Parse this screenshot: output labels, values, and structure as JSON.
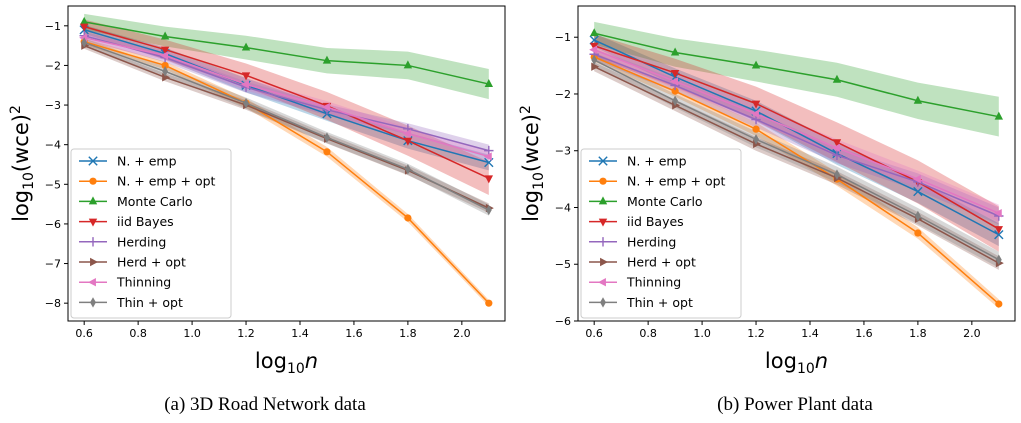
{
  "chart_data": [
    {
      "type": "line",
      "caption": "(a) 3D Road Network data",
      "xlabel": "log",
      "xlabel_sub": "10",
      "xlabel_var": "n",
      "ylabel": "log",
      "ylabel_sub": "10",
      "ylabel_rest": "(wce)",
      "ylabel_sup": "2",
      "xlim": [
        0.54,
        2.16
      ],
      "ylim": [
        -8.45,
        -0.5
      ],
      "xticks": [
        "0.6",
        "0.8",
        "1.0",
        "1.2",
        "1.4",
        "1.6",
        "1.8",
        "2.0"
      ],
      "yticks": [
        "-1",
        "-2",
        "-3",
        "-4",
        "-5",
        "-6",
        "-7",
        "-8"
      ],
      "grid": false,
      "legend_position": "lower-left",
      "x": [
        0.6,
        0.9,
        1.2,
        1.5,
        1.8,
        2.1
      ],
      "series": [
        {
          "name": "N. + emp",
          "color": "#1f77b4",
          "marker": "x",
          "values": [
            -1.1,
            -1.7,
            -2.5,
            -3.22,
            -3.9,
            -4.45
          ],
          "band": [
            0.12,
            0.15,
            0.18,
            0.18,
            0.2,
            0.2
          ]
        },
        {
          "name": "N. + emp + opt",
          "color": "#ff7f0e",
          "marker": "o",
          "values": [
            -1.4,
            -2.0,
            -2.95,
            -4.18,
            -5.85,
            -8.0
          ],
          "band": [
            0.08,
            0.1,
            0.12,
            0.12,
            0.1,
            0.08
          ]
        },
        {
          "name": "Monte Carlo",
          "color": "#2ca02c",
          "marker": "^",
          "values": [
            -0.9,
            -1.27,
            -1.55,
            -1.88,
            -2.0,
            -2.47
          ],
          "band": [
            0.2,
            0.25,
            0.3,
            0.32,
            0.35,
            0.38
          ]
        },
        {
          "name": "iid Bayes",
          "color": "#d62728",
          "marker": "v",
          "values": [
            -1.02,
            -1.6,
            -2.25,
            -3.02,
            -3.9,
            -4.85
          ],
          "band": [
            0.18,
            0.25,
            0.3,
            0.35,
            0.38,
            0.42
          ]
        },
        {
          "name": "Herding",
          "color": "#9467bd",
          "marker": "+",
          "values": [
            -1.25,
            -1.8,
            -2.55,
            -3.12,
            -3.6,
            -4.15
          ],
          "band": [
            0.1,
            0.12,
            0.14,
            0.14,
            0.14,
            0.15
          ]
        },
        {
          "name": "Herd + opt",
          "color": "#8c564b",
          "marker": ">",
          "values": [
            -1.5,
            -2.3,
            -3.0,
            -3.85,
            -4.65,
            -5.6
          ],
          "band": [
            0.08,
            0.1,
            0.12,
            0.12,
            0.12,
            0.12
          ]
        },
        {
          "name": "Thinning",
          "color": "#e377c2",
          "marker": "<",
          "values": [
            -1.3,
            -1.75,
            -2.48,
            -3.05,
            -3.72,
            -4.3
          ],
          "band": [
            0.1,
            0.12,
            0.15,
            0.15,
            0.15,
            0.15
          ]
        },
        {
          "name": "Thin + opt",
          "color": "#7f7f7f",
          "marker": "d",
          "values": [
            -1.42,
            -2.15,
            -2.95,
            -3.82,
            -4.62,
            -5.65
          ],
          "band": [
            0.1,
            0.12,
            0.14,
            0.14,
            0.14,
            0.14
          ]
        }
      ]
    },
    {
      "type": "line",
      "caption": "(b) Power Plant data",
      "xlabel": "log",
      "xlabel_sub": "10",
      "xlabel_var": "n",
      "ylabel": "log",
      "ylabel_sub": "10",
      "ylabel_rest": "(wce)",
      "ylabel_sup": "2",
      "xlim": [
        0.54,
        2.16
      ],
      "ylim": [
        -6.0,
        -0.45
      ],
      "xticks": [
        "0.6",
        "0.8",
        "1.0",
        "1.2",
        "1.4",
        "1.6",
        "1.8",
        "2.0"
      ],
      "yticks": [
        "-1",
        "-2",
        "-3",
        "-4",
        "-5",
        "-6"
      ],
      "grid": false,
      "legend_position": "lower-left",
      "x": [
        0.6,
        0.9,
        1.2,
        1.5,
        1.8,
        2.1
      ],
      "series": [
        {
          "name": "N. + emp",
          "color": "#1f77b4",
          "marker": "x",
          "values": [
            -1.05,
            -1.7,
            -2.3,
            -3.05,
            -3.72,
            -4.48
          ],
          "band": [
            0.12,
            0.15,
            0.18,
            0.2,
            0.2,
            0.2
          ]
        },
        {
          "name": "N. + emp + opt",
          "color": "#ff7f0e",
          "marker": "o",
          "values": [
            -1.35,
            -1.95,
            -2.62,
            -3.5,
            -4.45,
            -5.7
          ],
          "band": [
            0.08,
            0.1,
            0.12,
            0.12,
            0.1,
            0.08
          ]
        },
        {
          "name": "Monte Carlo",
          "color": "#2ca02c",
          "marker": "^",
          "values": [
            -0.93,
            -1.27,
            -1.5,
            -1.75,
            -2.12,
            -2.4
          ],
          "band": [
            0.2,
            0.25,
            0.28,
            0.3,
            0.32,
            0.35
          ]
        },
        {
          "name": "iid Bayes",
          "color": "#d62728",
          "marker": "v",
          "values": [
            -1.15,
            -1.63,
            -2.17,
            -2.85,
            -3.55,
            -4.38
          ],
          "band": [
            0.2,
            0.25,
            0.3,
            0.35,
            0.38,
            0.4
          ]
        },
        {
          "name": "Herding",
          "color": "#9467bd",
          "marker": "+",
          "values": [
            -1.3,
            -1.85,
            -2.45,
            -3.08,
            -3.55,
            -4.15
          ],
          "band": [
            0.1,
            0.12,
            0.14,
            0.14,
            0.15,
            0.15
          ]
        },
        {
          "name": "Herd + opt",
          "color": "#8c564b",
          "marker": ">",
          "values": [
            -1.52,
            -2.2,
            -2.88,
            -3.48,
            -4.2,
            -4.98
          ],
          "band": [
            0.08,
            0.1,
            0.12,
            0.12,
            0.12,
            0.12
          ]
        },
        {
          "name": "Thinning",
          "color": "#e377c2",
          "marker": "<",
          "values": [
            -1.22,
            -1.78,
            -2.35,
            -2.95,
            -3.5,
            -4.1
          ],
          "band": [
            0.1,
            0.12,
            0.15,
            0.15,
            0.15,
            0.15
          ]
        },
        {
          "name": "Thin + opt",
          "color": "#7f7f7f",
          "marker": "d",
          "values": [
            -1.4,
            -2.12,
            -2.8,
            -3.42,
            -4.15,
            -4.92
          ],
          "band": [
            0.1,
            0.12,
            0.14,
            0.14,
            0.14,
            0.14
          ]
        }
      ]
    }
  ]
}
